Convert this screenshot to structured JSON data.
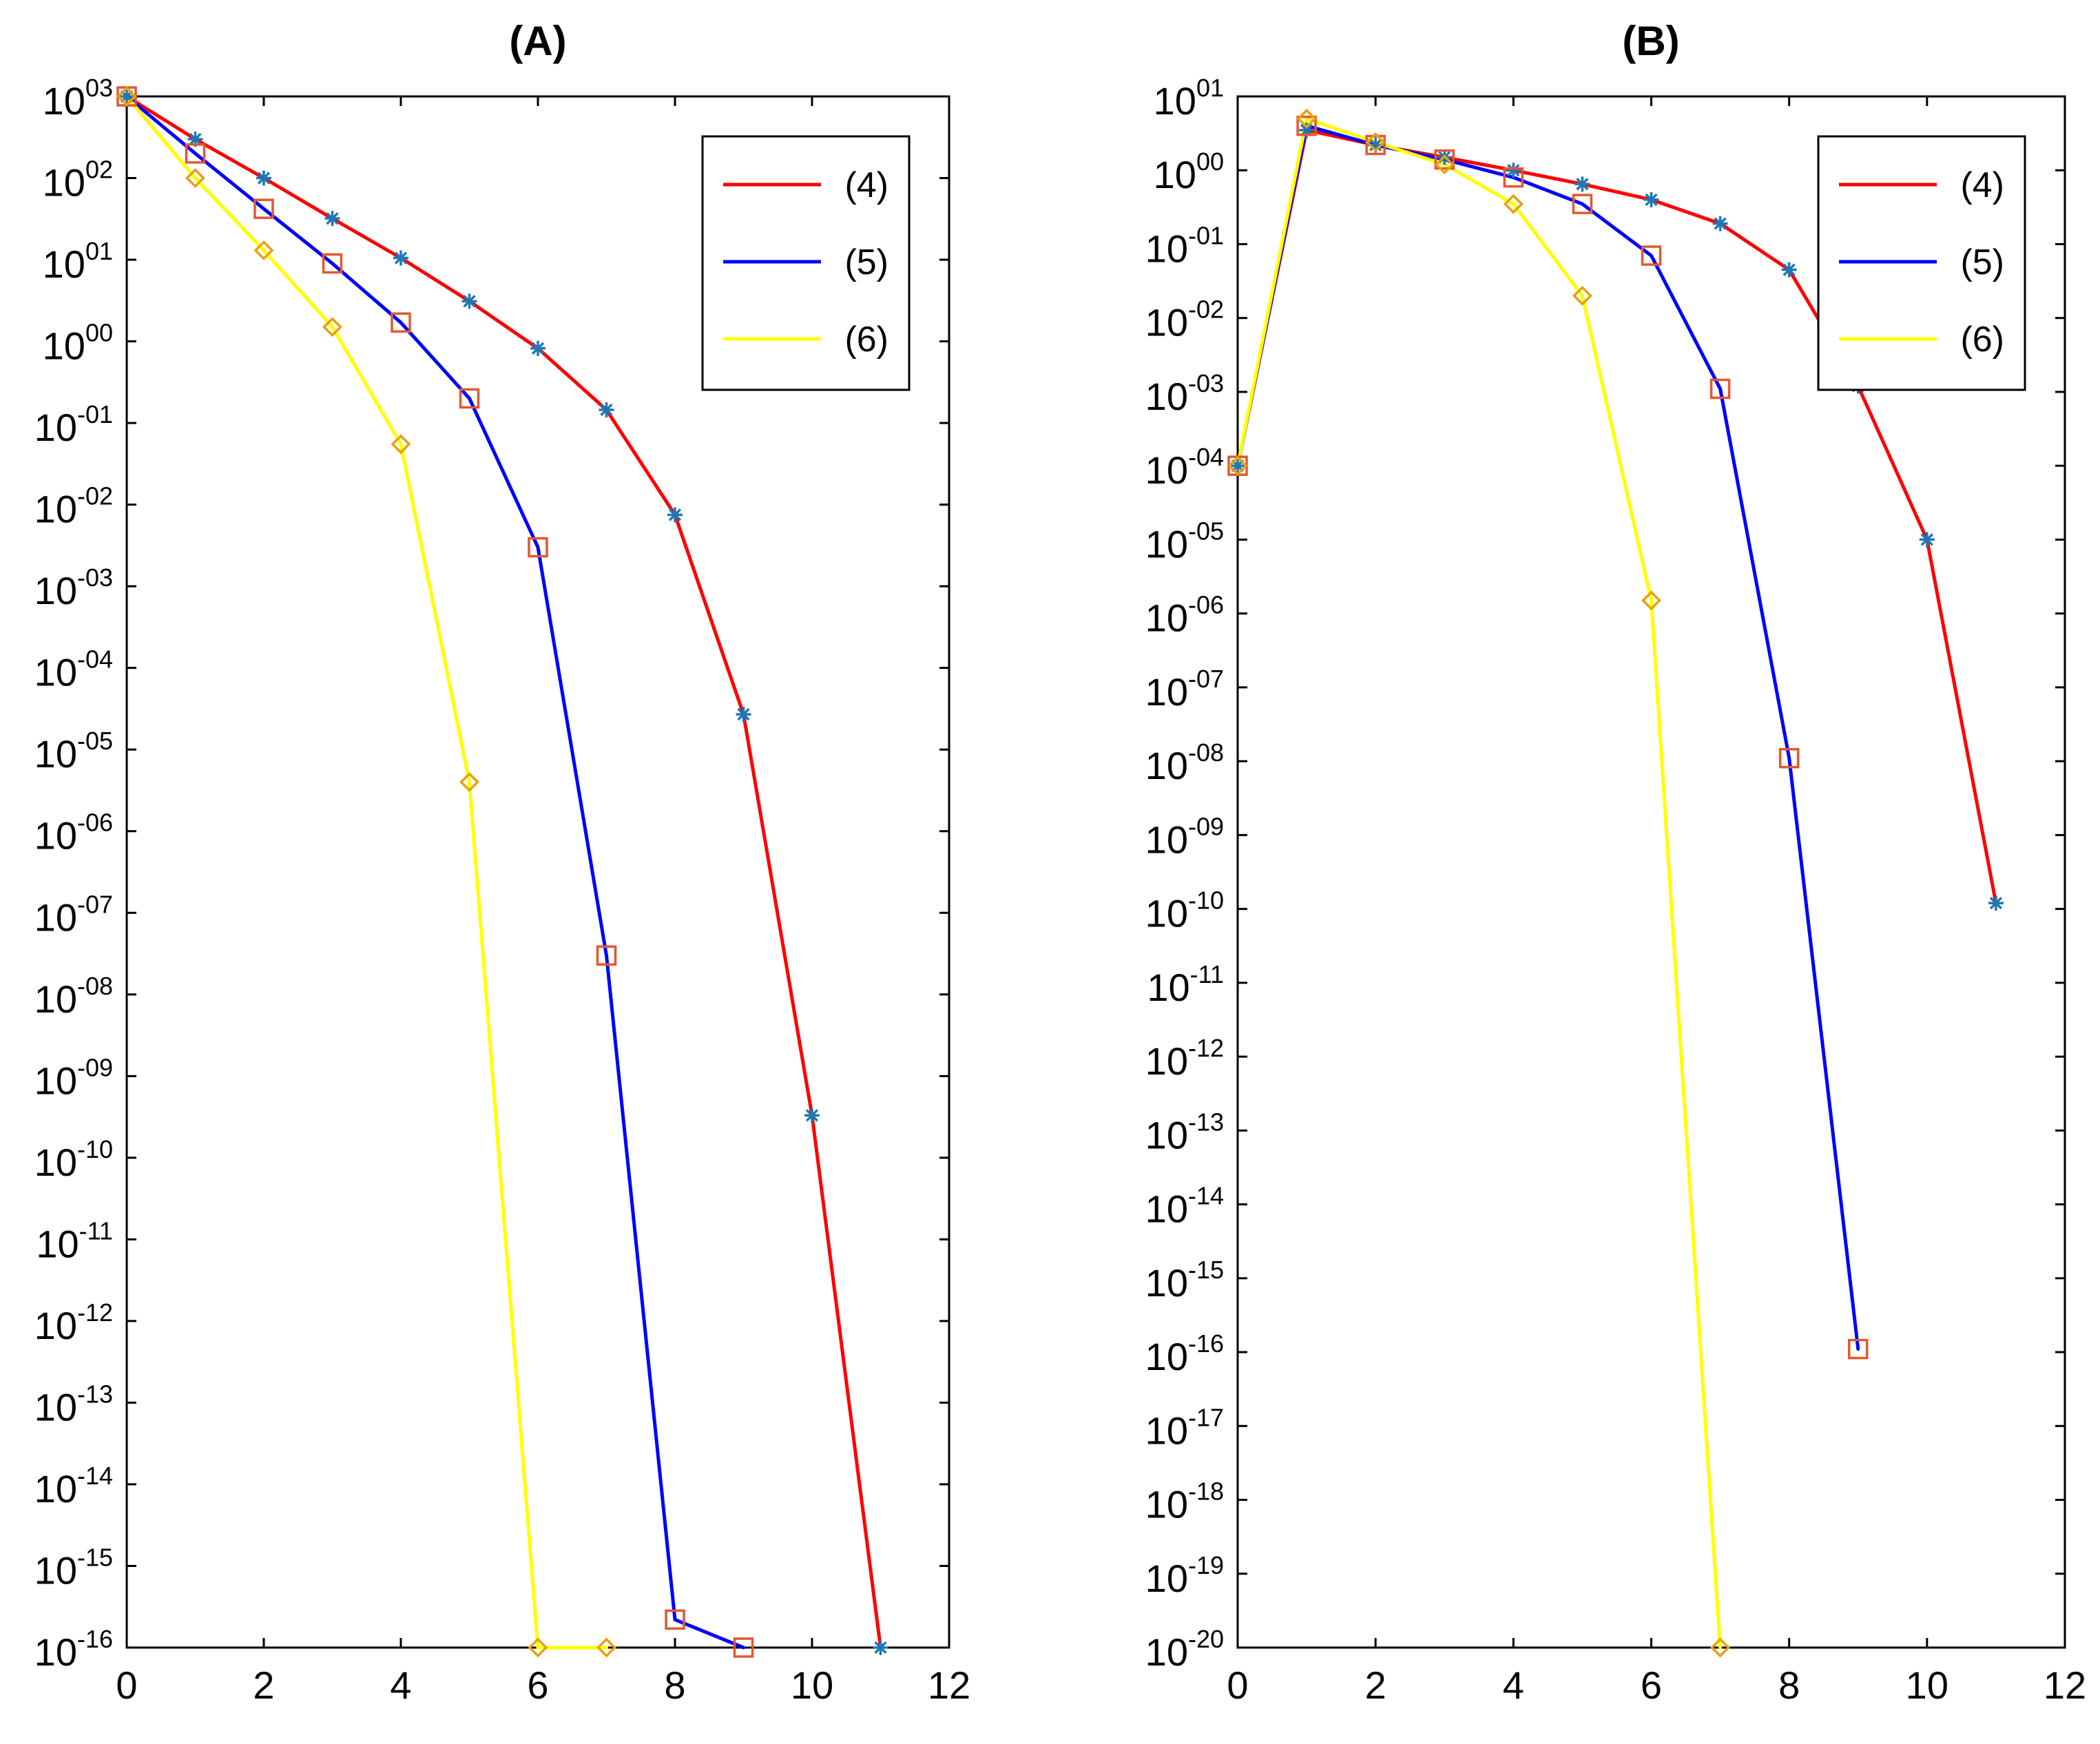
{
  "colors": {
    "red": "#ff0000",
    "blue": "#0000ff",
    "yellow": "#ffff00",
    "star_marker": "#1f77b4",
    "square_marker": "#e4572e",
    "diamond_marker": "#e8a010"
  },
  "chart_data": [
    {
      "type": "line",
      "title": "(A)",
      "xlabel": "",
      "ylabel": "",
      "yscale": "log",
      "xlim": [
        0,
        12
      ],
      "ylim_exp": [
        -16,
        3
      ],
      "xticks": [
        0,
        2,
        4,
        6,
        8,
        10,
        12
      ],
      "xtick_labels": [
        "0",
        "2",
        "4",
        "6",
        "8",
        "10",
        "12"
      ],
      "ytick_exps": [
        3,
        2,
        1,
        0,
        -1,
        -2,
        -3,
        -4,
        -5,
        -6,
        -7,
        -8,
        -9,
        -10,
        -11,
        -12,
        -13,
        -14,
        -15,
        -16
      ],
      "ytick_exp_labels": [
        "03",
        "02",
        "01",
        "00",
        "-01",
        "-02",
        "-03",
        "-04",
        "-05",
        "-06",
        "-07",
        "-08",
        "-09",
        "-10",
        "-11",
        "-12",
        "-13",
        "-14",
        "-15",
        "-16"
      ],
      "ytick_base": "10",
      "legend_position": "top-right",
      "series": [
        {
          "name": "(4)",
          "color": "#ff0000",
          "marker": "star",
          "x": [
            0,
            1,
            2,
            3,
            4,
            5,
            6,
            7,
            8,
            9,
            10,
            11
          ],
          "y": [
            1000,
            300,
            100,
            32,
            10.5,
            3.1,
            0.82,
            0.145,
            0.0075,
            2.7e-05,
            3.3e-10,
            1e-16
          ]
        },
        {
          "name": "(5)",
          "color": "#0000ff",
          "marker": "square",
          "x": [
            0,
            1,
            2,
            3,
            4,
            5,
            6,
            7,
            8,
            9
          ],
          "y": [
            1000,
            200,
            42,
            9,
            1.7,
            0.2,
            0.003,
            3e-08,
            2.2e-16,
            1e-16
          ]
        },
        {
          "name": "(6)",
          "color": "#ffff00",
          "marker": "diamond",
          "x": [
            0,
            1,
            2,
            3,
            4,
            5,
            6,
            7
          ],
          "y": [
            1000,
            100,
            13,
            1.5,
            0.055,
            4e-06,
            1e-16,
            1e-16
          ]
        }
      ]
    },
    {
      "type": "line",
      "title": "(B)",
      "xlabel": "",
      "ylabel": "",
      "yscale": "log",
      "xlim": [
        0,
        12
      ],
      "ylim_exp": [
        -20,
        1
      ],
      "xticks": [
        0,
        2,
        4,
        6,
        8,
        10,
        12
      ],
      "xtick_labels": [
        "0",
        "2",
        "4",
        "6",
        "8",
        "10",
        "12"
      ],
      "ytick_exps": [
        1,
        0,
        -1,
        -2,
        -3,
        -4,
        -5,
        -6,
        -7,
        -8,
        -9,
        -10,
        -11,
        -12,
        -13,
        -14,
        -15,
        -16,
        -17,
        -18,
        -19,
        -20
      ],
      "ytick_exp_labels": [
        "01",
        "00",
        "-01",
        "-02",
        "-03",
        "-04",
        "-05",
        "-06",
        "-07",
        "-08",
        "-09",
        "-10",
        "-11",
        "-12",
        "-13",
        "-14",
        "-15",
        "-16",
        "-17",
        "-18",
        "-19",
        "-20"
      ],
      "ytick_base": "10",
      "legend_position": "top-right",
      "series": [
        {
          "name": "(4)",
          "color": "#ff0000",
          "marker": "star",
          "x": [
            0,
            1,
            2,
            3,
            4,
            5,
            6,
            7,
            8,
            9,
            10,
            11
          ],
          "y": [
            0.0001,
            3.5,
            2.2,
            1.5,
            1.0,
            0.65,
            0.4,
            0.19,
            0.045,
            0.0012,
            1e-05,
            1.2e-10
          ]
        },
        {
          "name": "(5)",
          "color": "#0000ff",
          "marker": "square",
          "x": [
            0,
            1,
            2,
            3,
            4,
            5,
            6,
            7,
            8,
            9
          ],
          "y": [
            0.0001,
            4.0,
            2.2,
            1.4,
            0.8,
            0.35,
            0.07,
            0.0011,
            1.1e-08,
            1.1e-16
          ]
        },
        {
          "name": "(6)",
          "color": "#ffff00",
          "marker": "diamond",
          "x": [
            0,
            1,
            2,
            3,
            4,
            5,
            6,
            7
          ],
          "y": [
            0.0001,
            5.0,
            2.4,
            1.2,
            0.35,
            0.02,
            1.5e-06,
            1e-20
          ]
        }
      ]
    }
  ]
}
